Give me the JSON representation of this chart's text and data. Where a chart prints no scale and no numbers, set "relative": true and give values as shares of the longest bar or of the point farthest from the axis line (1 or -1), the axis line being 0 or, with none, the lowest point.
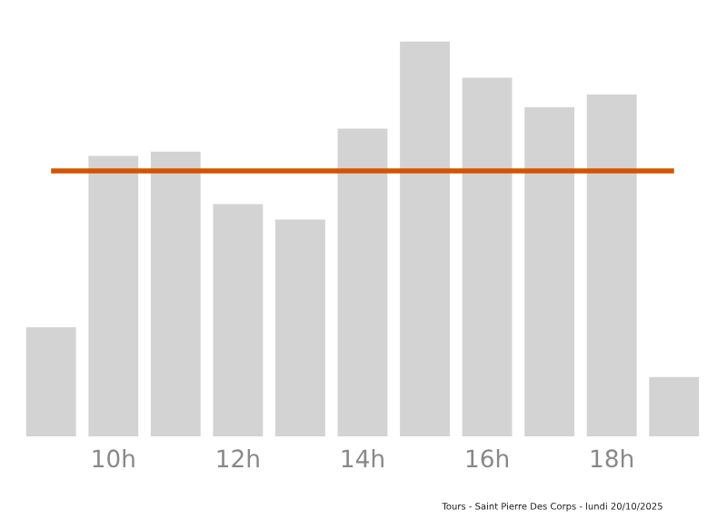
{
  "chart_data": {
    "type": "bar",
    "relative": true,
    "categories": [
      null,
      "10h",
      null,
      "12h",
      null,
      "14h",
      null,
      "16h",
      null,
      "18h",
      null
    ],
    "values": [
      0.276,
      0.71,
      0.721,
      0.588,
      0.549,
      0.779,
      1,
      0.908,
      0.833,
      0.865,
      0.15
    ],
    "color": "#d3d3d3",
    "ref_lines": [
      {
        "axis": "y",
        "value": 0.672,
        "color": "#d35400"
      }
    ],
    "annotations": [
      "Tours - Saint Pierre Des Corps - lundi 20/10/2025"
    ],
    "grid": false,
    "legend": false
  }
}
